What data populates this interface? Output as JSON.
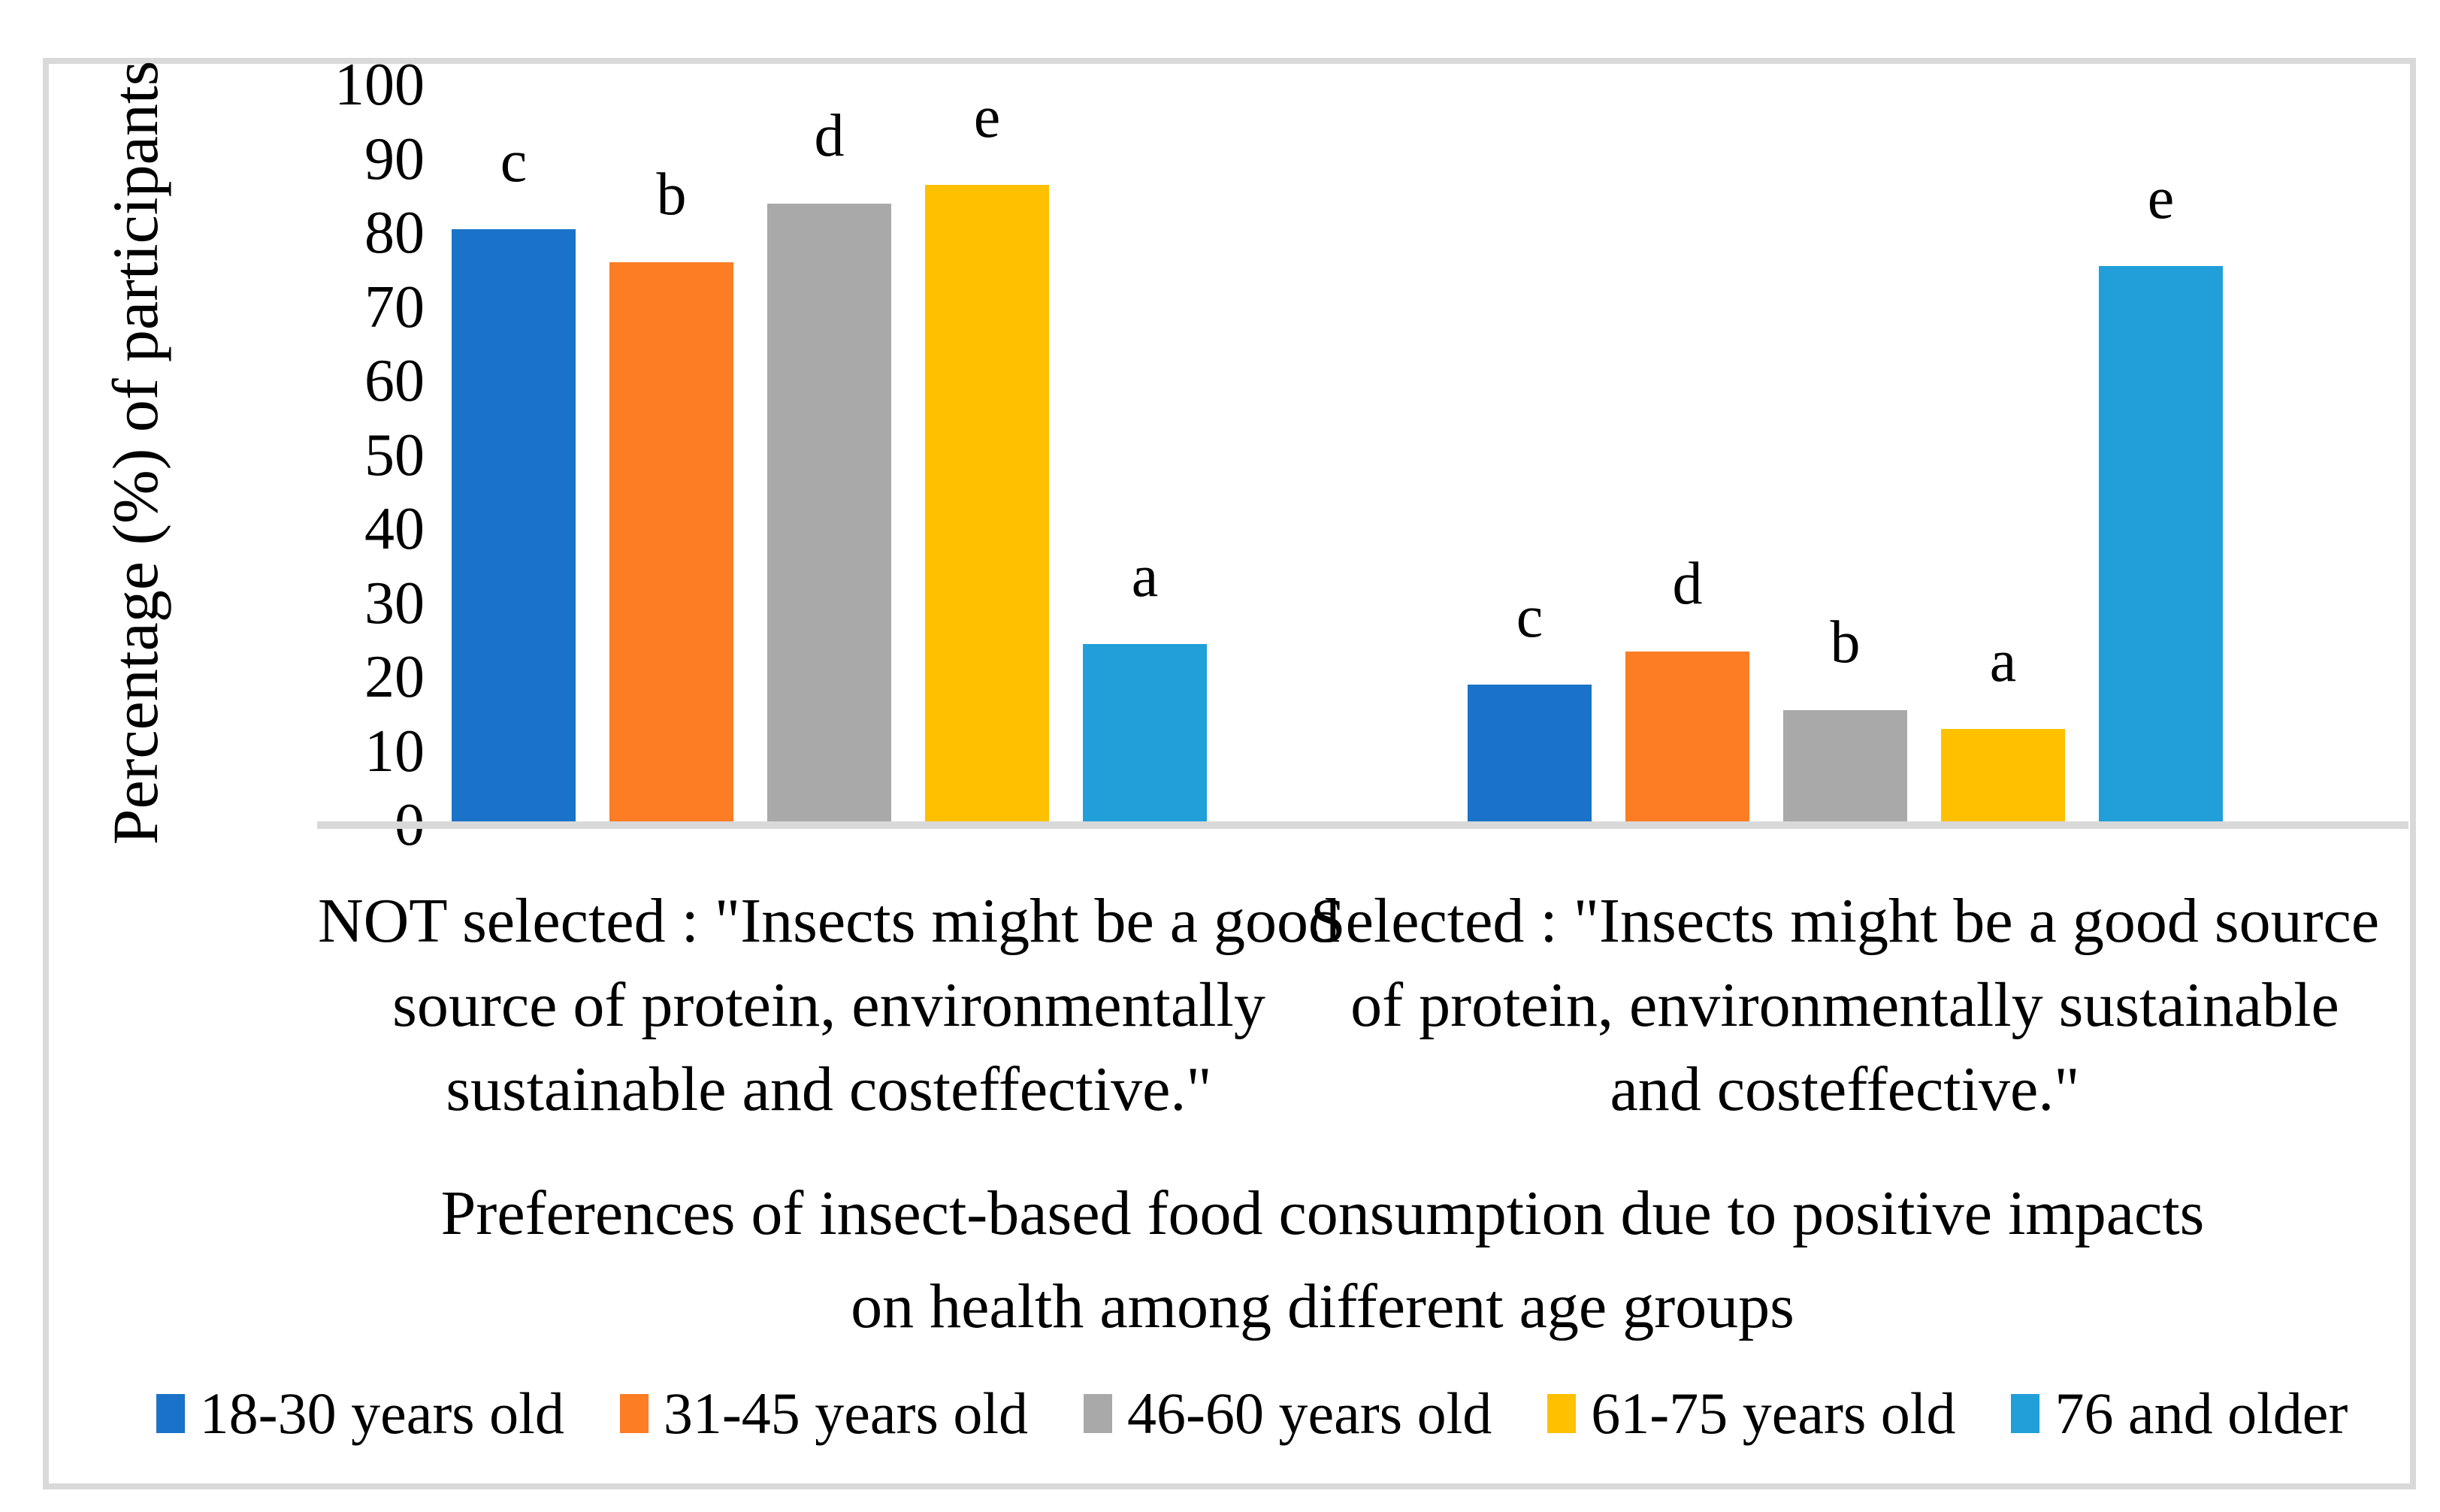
{
  "chart_data": {
    "type": "bar",
    "title": "Preferences of insect-based food consumption due to positive impacts on health among different age groups",
    "title_lines": [
      "Preferences of insect-based food consumption due to positive impacts",
      "on health among different age groups"
    ],
    "ylabel": "Percentage (%) of participants",
    "ylim": [
      0,
      100
    ],
    "yticks": [
      0,
      10,
      20,
      30,
      40,
      50,
      60,
      70,
      80,
      90,
      100
    ],
    "grid": false,
    "legend_position": "bottom",
    "categories": [
      {
        "label": "NOT selected : \"Insects might be a good source of protein, environmentally sustainable and costeffective.\"",
        "lines": [
          "NOT selected : \"Insects might be a good",
          "source of protein, environmentally",
          "sustainable and costeffective.\""
        ]
      },
      {
        "label": "Selected : \"Insects might be a good source of protein, environmentally sustainable and costeffective.\"",
        "lines": [
          "Selected : \"Insects might be a good source",
          "of protein, environmentally sustainable",
          "and costeffective.\""
        ]
      }
    ],
    "series": [
      {
        "name": "18-30 years old",
        "color": "#1A73C8",
        "values": [
          80.5,
          19
        ]
      },
      {
        "name": "31-45 years old",
        "color": "#FC7D24",
        "values": [
          76,
          23.5
        ]
      },
      {
        "name": "46-60 years old",
        "color": "#A9A9A9",
        "values": [
          84,
          15.5
        ]
      },
      {
        "name": "61-75 years old",
        "color": "#FFC000",
        "values": [
          86.5,
          13
        ]
      },
      {
        "name": "76 and older",
        "color": "#209FD9",
        "values": [
          24.5,
          75.5
        ]
      }
    ],
    "bar_letters": [
      [
        "c",
        "b",
        "d",
        "e",
        "a"
      ],
      [
        "c",
        "d",
        "b",
        "a",
        "e"
      ]
    ],
    "axis_color": "#D9D9D9",
    "text_color": "#000000"
  }
}
